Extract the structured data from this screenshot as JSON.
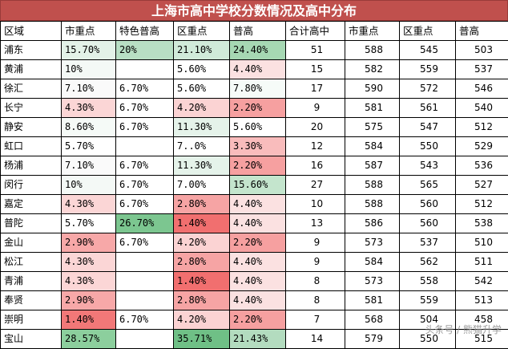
{
  "title": "上海市高中学校分数情况及高中分布",
  "headers": [
    "区域",
    "市重点",
    "特色普高",
    "区重点",
    "普高",
    "合计高中",
    "市重点",
    "区重点",
    "普高"
  ],
  "rows": [
    {
      "cells": [
        "浦东",
        "15.70%",
        "20%",
        "21.10%",
        "24.40%",
        "51",
        "588",
        "545",
        "503"
      ],
      "colors": [
        "#ffffff",
        "#e3f2e8",
        "#b8dfc4",
        "#d0ead9",
        "#a6d8b3"
      ]
    },
    {
      "cells": [
        "黄浦",
        "10%",
        "",
        "5.60%",
        "4.40%",
        "15",
        "582",
        "559",
        "537"
      ],
      "colors": [
        "#ffffff",
        "#f4f9f6",
        "#ffffff",
        "#ffffff",
        "#fbe1e1"
      ]
    },
    {
      "cells": [
        "徐汇",
        "7.10%",
        "6.70%",
        "5.60%",
        "7.80%",
        "17",
        "590",
        "572",
        "546"
      ],
      "colors": [
        "#ffffff",
        "#fafafa",
        "#ffffff",
        "#ffffff",
        "#f6fbf8"
      ]
    },
    {
      "cells": [
        "长宁",
        "4.30%",
        "6.70%",
        "4.20%",
        "2.20%",
        "9",
        "581",
        "561",
        "540"
      ],
      "colors": [
        "#ffffff",
        "#fbd6d6",
        "#ffffff",
        "#fbd3d3",
        "#f6a0a0"
      ]
    },
    {
      "cells": [
        "静安",
        "8.60%",
        "6.70%",
        "11.30%",
        "5.60%",
        "20",
        "575",
        "547",
        "512"
      ],
      "colors": [
        "#ffffff",
        "#f5faf7",
        "#ffffff",
        "#e5f3ea",
        "#ffffff"
      ]
    },
    {
      "cells": [
        "虹口",
        "5.70%",
        "",
        "7..0%",
        "3.30%",
        "12",
        "584",
        "550",
        "529"
      ],
      "colors": [
        "#ffffff",
        "#ffffff",
        "#ffffff",
        "#ffffff",
        "#f9bcbc"
      ]
    },
    {
      "cells": [
        "杨浦",
        "7.10%",
        "6.70%",
        "11.30%",
        "2.20%",
        "16",
        "587",
        "543",
        "536"
      ],
      "colors": [
        "#ffffff",
        "#fafafa",
        "#ffffff",
        "#e5f3ea",
        "#f6a0a0"
      ]
    },
    {
      "cells": [
        "闵行",
        "10%",
        "6.70%",
        "7.00%",
        "15.60%",
        "27",
        "588",
        "565",
        "527"
      ],
      "colors": [
        "#ffffff",
        "#f4f9f6",
        "#ffffff",
        "#ffffff",
        "#c4e5cd"
      ]
    },
    {
      "cells": [
        "嘉定",
        "4.30%",
        "6.70%",
        "2.80%",
        "4.40%",
        "10",
        "588",
        "560",
        "512"
      ],
      "colors": [
        "#ffffff",
        "#fbd6d6",
        "#ffffff",
        "#f6a4a4",
        "#fbe1e1"
      ]
    },
    {
      "cells": [
        "普陀",
        "5.70%",
        "26.70%",
        "1.40%",
        "4.40%",
        "13",
        "586",
        "560",
        "538"
      ],
      "colors": [
        "#ffffff",
        "#ffffff",
        "#7cc690",
        "#f16f6f",
        "#fbe1e1"
      ]
    },
    {
      "cells": [
        "金山",
        "2.90%",
        "6.70%",
        "4.20%",
        "2.20%",
        "9",
        "573",
        "537",
        "510"
      ],
      "colors": [
        "#ffffff",
        "#f7a8a8",
        "#ffffff",
        "#fbd3d3",
        "#f6a0a0"
      ]
    },
    {
      "cells": [
        "松江",
        "4.30%",
        "",
        "2.80%",
        "4.40%",
        "9",
        "584",
        "562",
        "511"
      ],
      "colors": [
        "#ffffff",
        "#fbd6d6",
        "#ffffff",
        "#f6a4a4",
        "#fbe1e1"
      ]
    },
    {
      "cells": [
        "青浦",
        "4.30%",
        "",
        "1.40%",
        "4.40%",
        "8",
        "573",
        "558",
        "542"
      ],
      "colors": [
        "#ffffff",
        "#fbd6d6",
        "#ffffff",
        "#f16f6f",
        "#fbe1e1"
      ]
    },
    {
      "cells": [
        "奉贤",
        "2.90%",
        "",
        "2.80%",
        "4.40%",
        "8",
        "581",
        "559",
        "513"
      ],
      "colors": [
        "#ffffff",
        "#f7a8a8",
        "#ffffff",
        "#f6a4a4",
        "#fbe1e1"
      ]
    },
    {
      "cells": [
        "崇明",
        "1.40%",
        "6.70%",
        "4.20%",
        "2.20%",
        "7",
        "568",
        "504",
        "458"
      ],
      "colors": [
        "#ffffff",
        "#f27878",
        "#ffffff",
        "#fbd3d3",
        "#f6a0a0"
      ]
    },
    {
      "cells": [
        "宝山",
        "28.57%",
        "",
        "35.71%",
        "21.43%",
        "14",
        "579",
        "550",
        "515"
      ],
      "colors": [
        "#ffffff",
        "#8ccf9d",
        "#ffffff",
        "#6fc086",
        "#b3dcbf"
      ]
    }
  ],
  "watermark": "头条号 / 熊猫升学"
}
